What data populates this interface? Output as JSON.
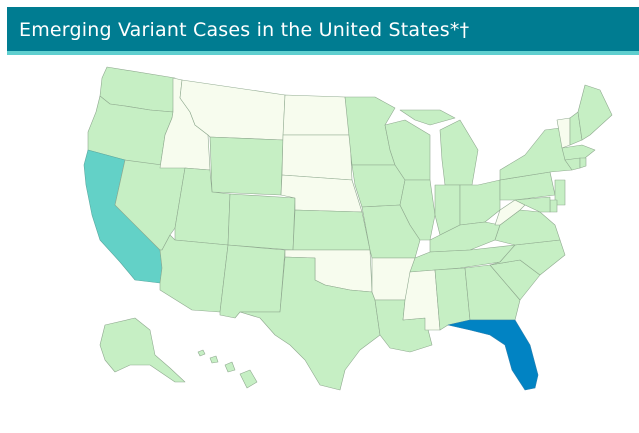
{
  "header": {
    "title": "Emerging Variant Cases in the United States*†"
  },
  "colors": {
    "header_bg": "#007c91",
    "header_accent": "#5fcfcf",
    "no_cases": "#f7fcee",
    "low": "#c6efc4",
    "medium": "#63d1c7",
    "high": "#0183c3",
    "state_border": "#8fa98f"
  },
  "legend_levels": [
    "no_cases",
    "low",
    "medium",
    "high"
  ],
  "states": {
    "WA": "low",
    "OR": "low",
    "CA": "medium",
    "NV": "low",
    "ID": "no_cases",
    "MT": "no_cases",
    "WY": "low",
    "UT": "low",
    "AZ": "low",
    "CO": "low",
    "NM": "low",
    "ND": "no_cases",
    "SD": "no_cases",
    "NE": "no_cases",
    "KS": "low",
    "OK": "no_cases",
    "TX": "low",
    "MN": "low",
    "IA": "low",
    "MO": "low",
    "AR": "no_cases",
    "LA": "low",
    "WI": "low",
    "IL": "low",
    "MI": "low",
    "IN": "low",
    "OH": "low",
    "KY": "low",
    "TN": "low",
    "MS": "no_cases",
    "AL": "low",
    "GA": "low",
    "FL": "high",
    "SC": "low",
    "NC": "low",
    "VA": "low",
    "WV": "no_cases",
    "PA": "low",
    "NY": "low",
    "VT": "no_cases",
    "NH": "low",
    "ME": "low",
    "MA": "low",
    "CT": "low",
    "RI": "low",
    "NJ": "low",
    "DE": "low",
    "MD": "low",
    "AK": "low",
    "HI": "low"
  }
}
